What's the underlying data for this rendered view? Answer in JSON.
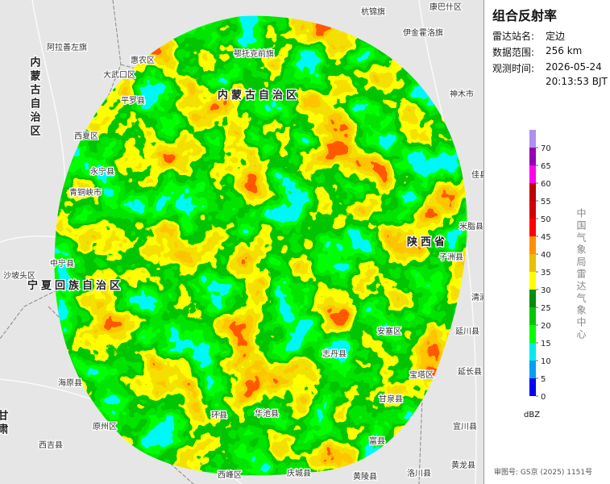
{
  "panel": {
    "title": "组合反射率",
    "station": {
      "label": "雷达站名:",
      "value": "定边"
    },
    "range": {
      "label": "数据范围:",
      "value": "256 km"
    },
    "time": {
      "label": "观测时间:",
      "date": "2026-05-24",
      "clock": "20:13:53 BJT"
    }
  },
  "legend": {
    "unit": "dBZ",
    "ticks": [
      0,
      5,
      10,
      15,
      20,
      25,
      30,
      35,
      40,
      45,
      50,
      55,
      60,
      65,
      70
    ],
    "colors": [
      "#0000f6",
      "#01a0f6",
      "#00ecec",
      "#01ff00",
      "#00c800",
      "#019000",
      "#ffff00",
      "#e7c000",
      "#ff9000",
      "#ff0000",
      "#d60000",
      "#c00000",
      "#ff00f0",
      "#9600b4",
      "#ad90f0"
    ],
    "credit": "中国气象局雷达气象中心"
  },
  "footer": "审图号: GS京 (2025) 1151号",
  "map_labels": [
    "杭锦旗",
    "康巴什区",
    "伊金霍洛旗",
    "神木市",
    "阿拉善左旗",
    "内蒙古自治区",
    "内蒙古自治区",
    "惠农区",
    "大武口区",
    "平罗县",
    "西夏区",
    "永宁县",
    "青铜峡市",
    "中宁县",
    "宁夏回族自治区",
    "沙坡头区",
    "海原县",
    "西吉县",
    "原州区",
    "鄂托克前旗",
    "佳县",
    "米脂县",
    "子洲县",
    "清涧县",
    "延川县",
    "延长县",
    "宝塔区",
    "宜川县",
    "黄龙县",
    "洛川县",
    "黄陵县",
    "甘泉县",
    "富县",
    "志丹县",
    "安塞区",
    "陕西省",
    "甘肃",
    "环县",
    "华池县",
    "西峰区",
    "庆城县"
  ]
}
